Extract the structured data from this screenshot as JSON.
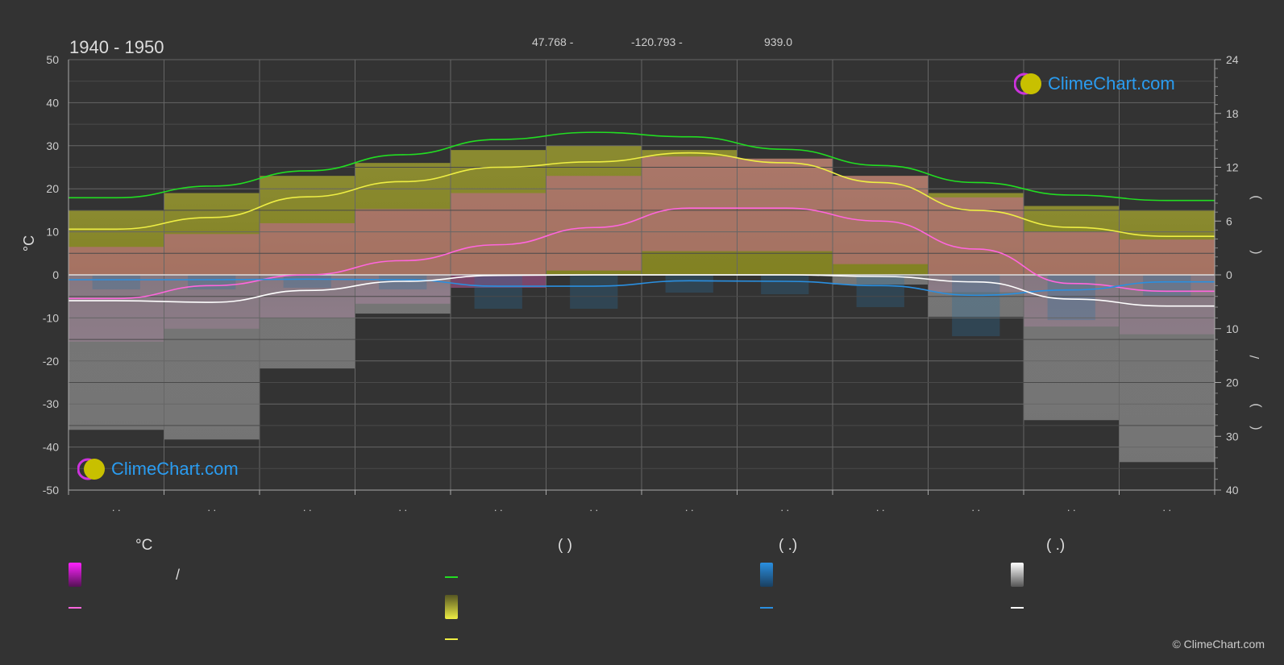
{
  "header": {
    "title": "1940 - 1950",
    "lat": "47.768 -",
    "lon": "-120.793 -",
    "elevation": "939.0"
  },
  "brand": {
    "name": "ClimeChart.com"
  },
  "footer": {
    "copyright": "© ClimeChart.com"
  },
  "chart_data": {
    "type": "line",
    "months": 12,
    "ylabel_left": "°C",
    "left_axis": {
      "min": -50,
      "max": 50,
      "ticks": [
        50,
        40,
        30,
        20,
        10,
        0,
        -10,
        -20,
        -30,
        -40,
        -50
      ]
    },
    "right_axis_top": {
      "min": 0,
      "max": 24,
      "ticks": [
        24,
        18,
        12,
        6,
        0
      ]
    },
    "right_axis_bottom": {
      "min": 0,
      "max": 40,
      "ticks": [
        10,
        20,
        30,
        40
      ]
    },
    "right_axis_symbols": [
      ")",
      "(",
      "/",
      ")",
      "("
    ],
    "month_labels": [
      ". .",
      ". .",
      ". .",
      ". .",
      ". .",
      ". .",
      ". .",
      ". .",
      ". .",
      ". .",
      ". .",
      ". ."
    ],
    "colors": {
      "daylight": "#22dd22",
      "sunshine": "#eeee44",
      "mean_temp": "#ff66dd",
      "rain": "#2a8fe0",
      "snow": "#ffffff"
    },
    "series": [
      {
        "key": "daylight",
        "axis": "right_top",
        "values": [
          8.6,
          9.9,
          11.6,
          13.4,
          15.1,
          15.9,
          15.4,
          14.0,
          12.2,
          10.3,
          8.9,
          8.3
        ]
      },
      {
        "key": "sunshine",
        "axis": "right_top",
        "values": [
          5.1,
          6.4,
          8.7,
          10.4,
          12.0,
          12.6,
          13.6,
          12.5,
          10.3,
          7.2,
          5.3,
          4.3
        ]
      },
      {
        "key": "max_band",
        "axis": "left",
        "values": [
          15,
          19,
          23,
          26,
          29,
          30,
          29,
          27,
          23,
          19,
          16,
          15
        ]
      },
      {
        "key": "mean_temp",
        "axis": "left",
        "values": [
          -5.5,
          -2.5,
          0,
          3.3,
          7,
          11,
          15.5,
          15.5,
          12.5,
          6,
          -2,
          -3.8
        ]
      },
      {
        "key": "rain",
        "axis": "right_bottom",
        "values": [
          0.9,
          0.9,
          0.8,
          0.9,
          2.1,
          2.1,
          1.1,
          1.2,
          2.0,
          3.8,
          2.8,
          1.3
        ]
      },
      {
        "key": "snow",
        "axis": "right_bottom",
        "values": [
          4.8,
          5.1,
          2.9,
          1.2,
          0.1,
          0,
          0,
          0,
          0.3,
          1.3,
          4.5,
          5.8
        ]
      }
    ]
  },
  "legend": {
    "col1": {
      "head": "°C",
      "item1_sep": "/"
    },
    "col2": {
      "head": "(           )"
    },
    "col3": {
      "head": "(   .)"
    },
    "col4": {
      "head": "(   .)"
    }
  }
}
